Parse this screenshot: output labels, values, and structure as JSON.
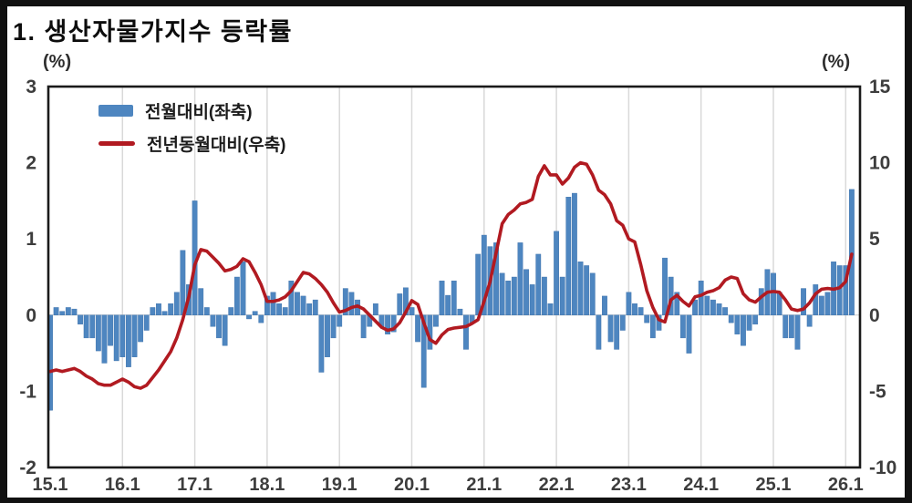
{
  "title": "1. 생산자물가지수 등락률",
  "axis_unit_left": "(%)",
  "axis_unit_right": "(%)",
  "colors": {
    "bar": "#4e86c0",
    "bar_edge": "#3a6ea8",
    "line": "#b11a21",
    "grid": "#d9d9d9",
    "zero_line": "#c8c8c8",
    "plot_border": "#1a1a1a",
    "tick_text": "#3d3d3d",
    "frame": "#111111"
  },
  "legend": {
    "bar_label": "전월대비(좌축)",
    "line_label": "전년동월대비(우축)"
  },
  "chart_data": {
    "type": "bar",
    "subtype": "combo-bar-line",
    "title": "1. 생산자물가지수 등락률",
    "x_start_month": "15.1",
    "x_end_month": "26.2",
    "x_tick_labels": [
      "15.1",
      "16.1",
      "17.1",
      "18.1",
      "19.1",
      "20.1",
      "21.1",
      "22.1",
      "23.1",
      "24.1",
      "25.1",
      "26.1"
    ],
    "left_axis": {
      "unit": "(%)",
      "ticks": [
        3,
        2,
        1,
        0,
        -1,
        -2
      ],
      "range": [
        -2,
        3
      ]
    },
    "right_axis": {
      "unit": "(%)",
      "ticks": [
        15,
        10,
        5,
        0,
        -5,
        -10
      ],
      "range": [
        -10,
        15
      ]
    },
    "grid": "vertical-only",
    "legend_position": "top-left-inside",
    "series": [
      {
        "name": "전월대비(좌축)",
        "type": "bar",
        "axis": "left",
        "color": "#4e86c0",
        "values": [
          -1.25,
          0.1,
          0.05,
          0.1,
          0.08,
          -0.12,
          -0.3,
          -0.3,
          -0.47,
          -0.63,
          -0.4,
          -0.6,
          -0.55,
          -0.68,
          -0.55,
          -0.35,
          -0.2,
          0.1,
          0.15,
          0.05,
          0.15,
          0.3,
          0.85,
          0.4,
          1.5,
          0.35,
          0.1,
          -0.15,
          -0.3,
          -0.4,
          0.1,
          0.5,
          0.7,
          -0.05,
          0.05,
          -0.1,
          0.25,
          0.3,
          0.15,
          0.1,
          0.45,
          0.3,
          0.25,
          0.15,
          0.2,
          -0.75,
          -0.55,
          -0.3,
          -0.15,
          0.35,
          0.3,
          0.2,
          -0.3,
          -0.15,
          0.15,
          -0.15,
          -0.25,
          -0.22,
          0.28,
          0.36,
          0.1,
          -0.35,
          -0.95,
          -0.45,
          -0.15,
          0.45,
          0.26,
          0.45,
          0.08,
          -0.45,
          -0.1,
          0.8,
          1.05,
          0.9,
          0.95,
          0.55,
          0.45,
          0.5,
          0.95,
          0.6,
          0.4,
          0.8,
          0.5,
          0.15,
          1.1,
          0.5,
          1.55,
          1.6,
          0.7,
          0.65,
          0.55,
          -0.45,
          0.25,
          -0.35,
          -0.45,
          -0.2,
          0.3,
          0.15,
          0.1,
          -0.1,
          -0.3,
          -0.2,
          0.75,
          0.5,
          0.3,
          -0.3,
          -0.5,
          0.2,
          0.45,
          0.25,
          0.2,
          0.15,
          0.1,
          -0.1,
          -0.25,
          -0.4,
          -0.2,
          -0.12,
          0.35,
          0.6,
          0.55,
          0.3,
          -0.3,
          -0.3,
          -0.45,
          0.35,
          -0.15,
          0.4,
          0.25,
          0.3,
          0.7,
          0.65,
          0.65,
          1.65
        ]
      },
      {
        "name": "전년동월대비(우축)",
        "type": "line",
        "axis": "right",
        "color": "#b11a21",
        "values": [
          -3.7,
          -3.6,
          -3.7,
          -3.6,
          -3.5,
          -3.7,
          -4.0,
          -4.2,
          -4.5,
          -4.6,
          -4.6,
          -4.4,
          -4.2,
          -4.4,
          -4.7,
          -4.8,
          -4.6,
          -4.1,
          -3.6,
          -3.0,
          -2.4,
          -1.5,
          -0.3,
          1.2,
          3.3,
          4.3,
          4.2,
          3.8,
          3.4,
          2.9,
          3.0,
          3.2,
          3.7,
          3.5,
          2.8,
          2.0,
          0.9,
          0.9,
          1.0,
          1.2,
          1.6,
          2.2,
          2.8,
          2.7,
          2.4,
          2.0,
          1.5,
          0.8,
          0.2,
          0.3,
          0.5,
          0.6,
          0.4,
          0.0,
          -0.4,
          -0.8,
          -1.0,
          -0.9,
          -0.5,
          0.2,
          0.95,
          0.7,
          -0.5,
          -1.6,
          -1.85,
          -1.3,
          -0.95,
          -0.85,
          -0.8,
          -0.75,
          -0.55,
          -0.3,
          0.9,
          2.2,
          4.1,
          6.0,
          6.6,
          6.9,
          7.3,
          7.4,
          7.6,
          9.1,
          9.8,
          9.2,
          9.2,
          8.6,
          9.0,
          9.7,
          10.0,
          9.9,
          9.2,
          8.2,
          7.9,
          7.3,
          6.2,
          5.9,
          5.0,
          4.8,
          3.3,
          1.6,
          0.5,
          -0.3,
          -0.45,
          1.0,
          1.3,
          0.9,
          0.6,
          1.2,
          1.3,
          1.5,
          1.6,
          1.8,
          2.3,
          2.5,
          2.4,
          1.4,
          1.0,
          0.85,
          1.2,
          1.5,
          1.55,
          1.5,
          1.0,
          0.4,
          0.3,
          0.4,
          0.8,
          1.4,
          1.7,
          1.75,
          1.7,
          1.8,
          2.2,
          4.0
        ]
      }
    ]
  }
}
